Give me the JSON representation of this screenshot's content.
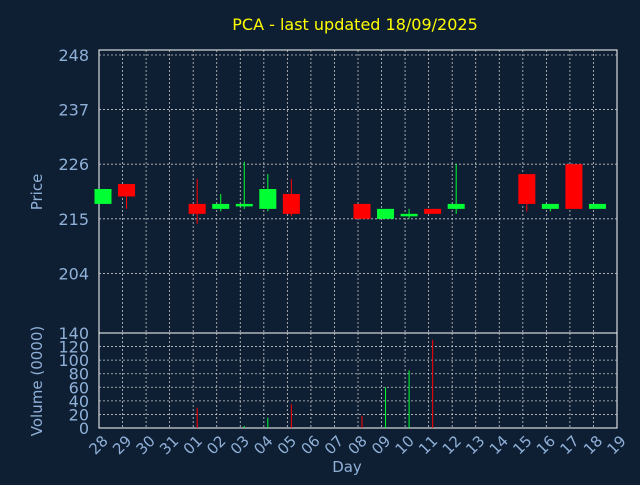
{
  "chart_data": {
    "type": "candlestick",
    "title": "PCA - last updated 18/09/2025",
    "colors": {
      "background": "#0f1f33",
      "panel_border": "#ffffff",
      "grid": "#c8c8c8",
      "title": "#ffff00",
      "axis_text": "#8fb0d8",
      "up": "#00ff33",
      "down": "#ff0000"
    },
    "price_panel": {
      "ylabel": "Price",
      "ylim": [
        192,
        249
      ],
      "yticks": [
        204,
        215,
        226,
        237,
        248
      ]
    },
    "volume_panel": {
      "ylabel": "Volume (0000)",
      "ylim": [
        0,
        140
      ],
      "yticks": [
        0,
        20,
        40,
        60,
        80,
        100,
        120,
        140
      ]
    },
    "xlabel": "Day",
    "x_ticks": [
      "28",
      "29",
      "30",
      "31",
      "01",
      "02",
      "03",
      "04",
      "05",
      "06",
      "07",
      "08",
      "09",
      "10",
      "11",
      "12",
      "13",
      "14",
      "15",
      "16",
      "17",
      "18",
      "19"
    ],
    "candles": [
      {
        "day": "28",
        "open": 218.0,
        "high": 221.0,
        "low": 218.0,
        "close": 221.0,
        "volume": 0
      },
      {
        "day": "29",
        "open": 222.0,
        "high": 222.0,
        "low": 217.0,
        "close": 219.5,
        "volume": 0
      },
      {
        "day": "01",
        "open": 218.0,
        "high": 223.0,
        "low": 214.0,
        "close": 216.0,
        "volume": 30
      },
      {
        "day": "02",
        "open": 217.0,
        "high": 220.0,
        "low": 216.5,
        "close": 218.0,
        "volume": 0
      },
      {
        "day": "03",
        "open": 217.5,
        "high": 226.5,
        "low": 217.0,
        "close": 218.0,
        "volume": 3
      },
      {
        "day": "04",
        "open": 217.0,
        "high": 224.0,
        "low": 216.5,
        "close": 221.0,
        "volume": 15
      },
      {
        "day": "05",
        "open": 220.0,
        "high": 223.0,
        "low": 215.5,
        "close": 216.0,
        "volume": 35
      },
      {
        "day": "08",
        "open": 218.0,
        "high": 218.0,
        "low": 215.0,
        "close": 215.0,
        "volume": 18
      },
      {
        "day": "09",
        "open": 215.0,
        "high": 217.0,
        "low": 215.0,
        "close": 217.0,
        "volume": 60
      },
      {
        "day": "10",
        "open": 215.5,
        "high": 217.0,
        "low": 215.0,
        "close": 216.0,
        "volume": 85
      },
      {
        "day": "11",
        "open": 217.0,
        "high": 217.0,
        "low": 216.0,
        "close": 216.0,
        "volume": 130
      },
      {
        "day": "12",
        "open": 217.0,
        "high": 226.0,
        "low": 216.0,
        "close": 218.0,
        "volume": 0
      },
      {
        "day": "15",
        "open": 224.0,
        "high": 224.0,
        "low": 216.5,
        "close": 218.0,
        "volume": 0
      },
      {
        "day": "16",
        "open": 217.0,
        "high": 218.0,
        "low": 216.5,
        "close": 218.0,
        "volume": 0
      },
      {
        "day": "17",
        "open": 226.0,
        "high": 226.0,
        "low": 217.0,
        "close": 217.0,
        "volume": 0
      },
      {
        "day": "18",
        "open": 217.0,
        "high": 218.0,
        "low": 217.0,
        "close": 218.0,
        "volume": 0
      }
    ]
  }
}
